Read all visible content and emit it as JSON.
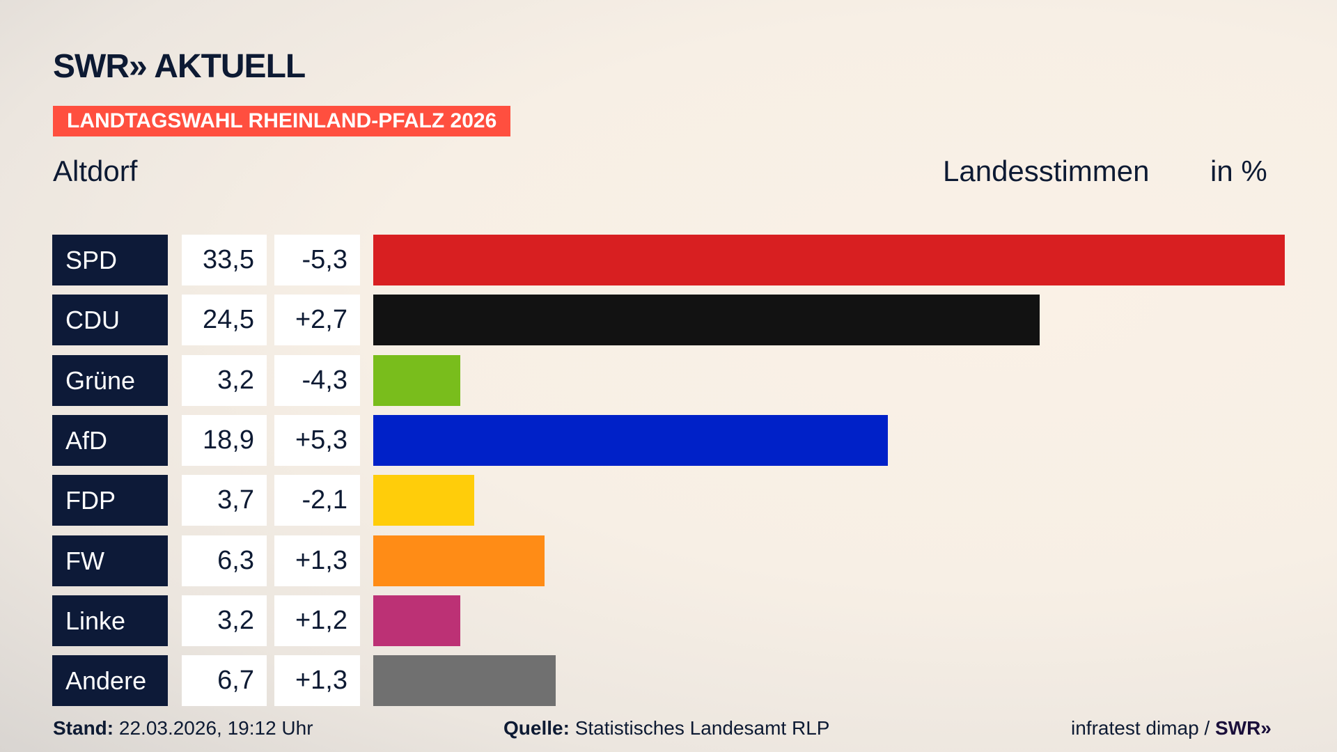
{
  "header": {
    "logo": "SWR» AKTUELL",
    "banner": "LANDTAGSWAHL RHEINLAND-PFALZ 2026",
    "region": "Altdorf",
    "vote_type": "Landesstimmen",
    "unit": "in %"
  },
  "chart_data": {
    "type": "bar",
    "orientation": "horizontal",
    "categories": [
      "SPD",
      "CDU",
      "Grüne",
      "AfD",
      "FDP",
      "FW",
      "Linke",
      "Andere"
    ],
    "values": [
      33.5,
      24.5,
      3.2,
      18.9,
      3.7,
      6.3,
      3.2,
      6.7
    ],
    "value_labels": [
      "33,5",
      "24,5",
      "3,2",
      "18,9",
      "3,7",
      "6,3",
      "3,2",
      "6,7"
    ],
    "diff_labels": [
      "-5,3",
      "+2,7",
      "-4,3",
      "+5,3",
      "-2,1",
      "+1,3",
      "+1,2",
      "+1,3"
    ],
    "colors": [
      "#d81f21",
      "#121212",
      "#79bd1c",
      "#0021c8",
      "#ffcd0a",
      "#ff8c16",
      "#bc3175",
      "#707070"
    ]
  },
  "footer": {
    "stand_label": "Stand:",
    "stand_value": "22.03.2026, 19:12 Uhr",
    "source_label": "Quelle:",
    "source_value": "Statistisches Landesamt RLP",
    "credit": "infratest dimap /",
    "credit_logo": "SWR»"
  }
}
